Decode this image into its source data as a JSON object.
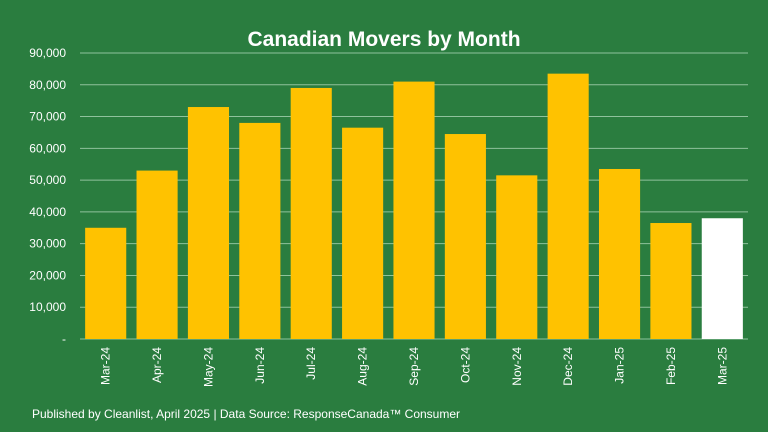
{
  "chart_data": {
    "type": "bar",
    "title": "Canadian Movers by Month",
    "categories": [
      "Mar-24",
      "Apr-24",
      "May-24",
      "Jun-24",
      "Jul-24",
      "Aug-24",
      "Sep-24",
      "Oct-24",
      "Nov-24",
      "Dec-24",
      "Jan-25",
      "Feb-25",
      "Mar-25"
    ],
    "values": [
      35000,
      53000,
      73000,
      68000,
      79000,
      66500,
      81000,
      64500,
      51500,
      83500,
      53500,
      36500,
      38000
    ],
    "yticks": [
      "-",
      "10,000",
      "20,000",
      "30,000",
      "40,000",
      "50,000",
      "60,000",
      "70,000",
      "80,000",
      "90,000"
    ],
    "ylim": [
      0,
      90000
    ],
    "grid": true,
    "xlabel": "",
    "ylabel": "",
    "colors": {
      "background": "#2a7d3f",
      "bar": "#ffc200",
      "highlight_bar": "#ffffff",
      "grid": "#8fc29c",
      "text": "#ffffff"
    },
    "highlight_index": 12
  },
  "footer": "Published by Cleanlist, April 2025 | Data Source: ResponseCanada™ Consumer"
}
